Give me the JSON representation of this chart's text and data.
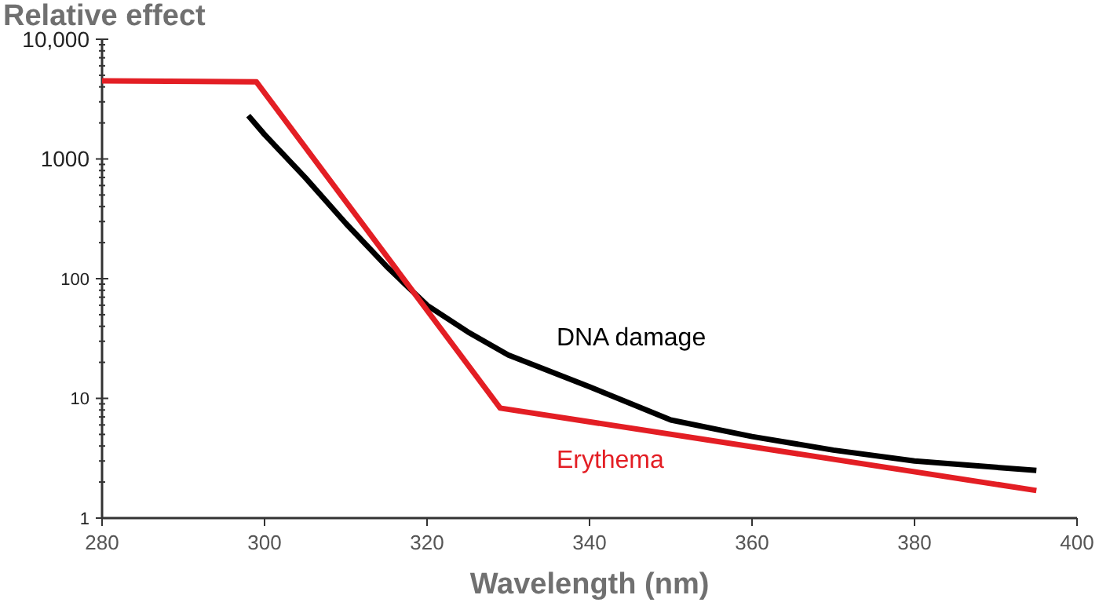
{
  "chart_data": {
    "type": "line",
    "ylabel": "Relative effect",
    "xlabel": "Wavelength (nm)",
    "log": "y",
    "grid": false,
    "legend": false,
    "marker": "none",
    "line_style": "solid",
    "xlim": [
      280,
      400
    ],
    "xticks": [
      280,
      300,
      320,
      340,
      360,
      380,
      400
    ],
    "ylim": [
      1,
      10000
    ],
    "yticks": [
      1,
      {
        "value": 2,
        "label": null
      },
      {
        "value": 3,
        "label": null
      },
      {
        "value": 4,
        "label": null
      },
      {
        "value": 5,
        "label": null
      },
      {
        "value": 6,
        "label": null
      },
      {
        "value": 7,
        "label": null
      },
      {
        "value": 8,
        "label": null
      },
      {
        "value": 9,
        "label": null
      },
      10,
      {
        "value": 20,
        "label": null
      },
      {
        "value": 30,
        "label": null
      },
      {
        "value": 40,
        "label": null
      },
      {
        "value": 50,
        "label": null
      },
      {
        "value": 60,
        "label": null
      },
      {
        "value": 70,
        "label": null
      },
      {
        "value": 80,
        "label": null
      },
      {
        "value": 90,
        "label": null
      },
      100,
      {
        "value": 200,
        "label": null
      },
      {
        "value": 300,
        "label": null
      },
      {
        "value": 400,
        "label": null
      },
      {
        "value": 500,
        "label": null
      },
      {
        "value": 600,
        "label": null
      },
      {
        "value": 700,
        "label": null
      },
      {
        "value": 800,
        "label": null
      },
      {
        "value": 900,
        "label": null
      },
      1000,
      {
        "value": 2000,
        "label": null
      },
      {
        "value": 3000,
        "label": null
      },
      {
        "value": 4000,
        "label": null
      },
      {
        "value": 5000,
        "label": null
      },
      {
        "value": 6000,
        "label": null
      },
      {
        "value": 7000,
        "label": null
      },
      {
        "value": 8000,
        "label": null
      },
      {
        "value": 9000,
        "label": null
      },
      {
        "value": 10000,
        "label": "10,000"
      }
    ],
    "series": [
      {
        "name": "DNA damage",
        "color": "#000000",
        "x": [
          298,
          300,
          305,
          310,
          315,
          320,
          325,
          330,
          340,
          350,
          360,
          370,
          380,
          395
        ],
        "values": [
          2300,
          1600,
          700,
          290,
          127,
          60,
          36,
          23,
          12.5,
          6.6,
          4.8,
          3.7,
          3.0,
          2.5
        ]
      },
      {
        "name": "Erythema",
        "color": "#e31e24",
        "x": [
          280,
          299,
          329,
          395
        ],
        "values": [
          4500,
          4400,
          8.3,
          1.7
        ]
      }
    ]
  }
}
